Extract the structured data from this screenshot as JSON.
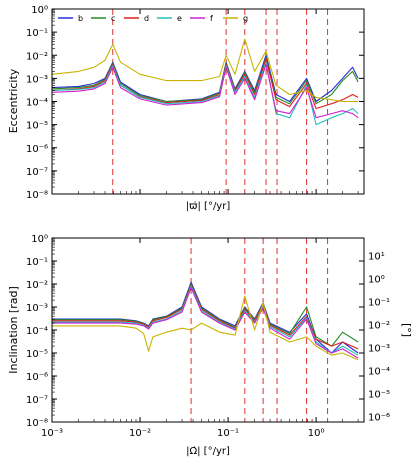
{
  "chart_data": [
    {
      "type": "line",
      "ylabel": "Eccentricity",
      "xlabel": "|ϖ̇|  [°/yr]",
      "xscale": "log",
      "yscale": "log",
      "xlim": [
        0.001,
        3.5
      ],
      "ylim": [
        1e-08,
        1
      ],
      "x_ticks": [],
      "y_tick_exponents": [
        0,
        -1,
        -2,
        -3,
        -4,
        -5,
        -6,
        -7,
        -8
      ],
      "y_tick_labels": [
        "10⁰",
        "10⁻¹",
        "10⁻²",
        "10⁻³",
        "10⁻⁴",
        "10⁻⁵",
        "10⁻⁶",
        "10⁻⁷",
        "10⁻⁸"
      ],
      "vlines": [
        0.0049,
        0.095,
        0.155,
        0.27,
        0.36,
        0.78,
        1.35
      ],
      "legend": {
        "placement": "top-left",
        "entries": [
          "b",
          "c",
          "d",
          "e",
          "f",
          "g"
        ]
      },
      "series": [
        {
          "name": "b",
          "color": "#2b2bd6",
          "x": [
            0.001,
            0.002,
            0.003,
            0.004,
            0.0049,
            0.006,
            0.01,
            0.02,
            0.05,
            0.08,
            0.095,
            0.12,
            0.155,
            0.2,
            0.27,
            0.35,
            0.5,
            0.78,
            1.0,
            1.5,
            2.0,
            2.6,
            3.0
          ],
          "y": [
            0.0004,
            0.00045,
            0.0006,
            0.001,
            0.005,
            0.0007,
            0.0002,
            0.0001,
            0.00013,
            0.00025,
            0.005,
            0.00035,
            0.002,
            0.0003,
            0.01,
            0.0002,
            0.0001,
            0.001,
            0.0001,
            0.0003,
            0.001,
            0.003,
            0.001
          ]
        },
        {
          "name": "c",
          "color": "#228b22",
          "x": [
            0.001,
            0.002,
            0.003,
            0.004,
            0.0049,
            0.006,
            0.01,
            0.02,
            0.05,
            0.08,
            0.095,
            0.12,
            0.155,
            0.2,
            0.27,
            0.35,
            0.5,
            0.78,
            1.0,
            1.5,
            2.0,
            2.6,
            3.0
          ],
          "y": [
            0.00035,
            0.0004,
            0.0005,
            0.0009,
            0.0045,
            0.0006,
            0.00018,
            0.0001,
            0.00012,
            0.00023,
            0.0045,
            0.0003,
            0.0018,
            0.00025,
            0.008,
            0.00015,
            8e-05,
            0.0008,
            8e-05,
            0.0002,
            0.0008,
            0.002,
            0.0007
          ]
        },
        {
          "name": "d",
          "color": "#e02020",
          "x": [
            0.001,
            0.002,
            0.003,
            0.004,
            0.0049,
            0.006,
            0.01,
            0.02,
            0.05,
            0.08,
            0.095,
            0.12,
            0.155,
            0.2,
            0.27,
            0.35,
            0.5,
            0.78,
            1.0,
            1.5,
            2.0,
            2.6,
            3.0
          ],
          "y": [
            0.0003,
            0.00035,
            0.00045,
            0.0008,
            0.004,
            0.0005,
            0.00016,
            9e-05,
            0.00011,
            0.0002,
            0.004,
            0.00028,
            0.0015,
            0.0002,
            0.007,
            0.00012,
            6e-05,
            0.0006,
            5e-05,
            8e-05,
            0.00012,
            0.0002,
            0.00015
          ]
        },
        {
          "name": "e",
          "color": "#20c0c0",
          "x": [
            0.001,
            0.002,
            0.003,
            0.004,
            0.0049,
            0.006,
            0.01,
            0.02,
            0.05,
            0.08,
            0.095,
            0.12,
            0.155,
            0.2,
            0.27,
            0.35,
            0.5,
            0.78,
            1.0,
            1.5,
            2.0,
            2.6,
            3.0
          ],
          "y": [
            0.0003,
            0.00033,
            0.0004,
            0.0007,
            0.0035,
            0.0005,
            0.00015,
            8e-05,
            0.0001,
            0.00018,
            0.0035,
            0.00025,
            0.0012,
            0.00015,
            0.005,
            3e-05,
            2e-05,
            0.0005,
            1e-05,
            2e-05,
            3e-05,
            5e-05,
            3e-05
          ]
        },
        {
          "name": "f",
          "color": "#d020d0",
          "x": [
            0.001,
            0.002,
            0.003,
            0.004,
            0.0049,
            0.006,
            0.01,
            0.02,
            0.05,
            0.08,
            0.095,
            0.12,
            0.155,
            0.2,
            0.27,
            0.35,
            0.5,
            0.78,
            1.0,
            1.5,
            2.0,
            2.6,
            3.0
          ],
          "y": [
            0.00025,
            0.00028,
            0.00035,
            0.0006,
            0.003,
            0.0004,
            0.00013,
            7e-05,
            9e-05,
            0.00016,
            0.003,
            0.0002,
            0.001,
            0.00012,
            0.004,
            4e-05,
            3e-05,
            0.0004,
            2e-05,
            3e-05,
            4e-05,
            3e-05,
            2e-05
          ]
        },
        {
          "name": "g",
          "color": "#c8b400",
          "x": [
            0.001,
            0.002,
            0.003,
            0.004,
            0.0049,
            0.006,
            0.01,
            0.02,
            0.05,
            0.08,
            0.095,
            0.12,
            0.155,
            0.2,
            0.27,
            0.35,
            0.5,
            0.78,
            1.0,
            1.5,
            2.0,
            2.6,
            3.0
          ],
          "y": [
            0.0015,
            0.002,
            0.003,
            0.006,
            0.03,
            0.005,
            0.0015,
            0.0008,
            0.0008,
            0.0012,
            0.01,
            0.0015,
            0.05,
            0.002,
            0.015,
            0.0005,
            0.0002,
            0.0003,
            0.00015,
            0.00012,
            0.0001,
            0.0001,
            0.0001
          ]
        }
      ]
    },
    {
      "type": "line",
      "ylabel": "Inclination [rad]",
      "y2label": "[°]",
      "xlabel": "|Ω̇|  [°/yr]",
      "xscale": "log",
      "yscale": "log",
      "xlim": [
        0.001,
        3.5
      ],
      "ylim": [
        1e-08,
        1
      ],
      "x_tick_labels": [
        "10⁻³",
        "10⁻²",
        "10⁻¹",
        "10⁰"
      ],
      "x_tick_values": [
        0.001,
        0.01,
        0.1,
        1
      ],
      "y_tick_exponents": [
        0,
        -1,
        -2,
        -3,
        -4,
        -5,
        -6,
        -7,
        -8
      ],
      "y_tick_labels": [
        "10⁰",
        "10⁻¹",
        "10⁻²",
        "10⁻³",
        "10⁻⁴",
        "10⁻⁵",
        "10⁻⁶",
        "10⁻⁷",
        "10⁻⁸"
      ],
      "y2_tick_exponents": [
        1,
        0,
        -1,
        -2,
        -3,
        -4,
        -5,
        -6
      ],
      "y2_tick_labels": [
        "10¹",
        "10⁰",
        "10⁻¹",
        "10⁻²",
        "10⁻³",
        "10⁻⁴",
        "10⁻⁵",
        "10⁻⁶"
      ],
      "vlines": [
        0.038,
        0.155,
        0.25,
        0.36,
        0.78,
        1.35
      ],
      "series": [
        {
          "name": "b",
          "color": "#2b2bd6",
          "x": [
            0.001,
            0.003,
            0.006,
            0.009,
            0.011,
            0.0125,
            0.014,
            0.02,
            0.03,
            0.038,
            0.05,
            0.08,
            0.12,
            0.155,
            0.2,
            0.25,
            0.3,
            0.5,
            0.78,
            1.0,
            1.5,
            2.0,
            3.0
          ],
          "y": [
            0.0003,
            0.0003,
            0.0003,
            0.00025,
            0.0002,
            0.00015,
            0.0003,
            0.0004,
            0.001,
            0.012,
            0.001,
            0.0003,
            0.00015,
            0.001,
            0.0003,
            0.0015,
            0.0002,
            8e-05,
            0.0005,
            4e-05,
            1e-05,
            3e-05,
            1e-05
          ]
        },
        {
          "name": "c",
          "color": "#228b22",
          "x": [
            0.001,
            0.003,
            0.006,
            0.009,
            0.011,
            0.0125,
            0.014,
            0.02,
            0.03,
            0.038,
            0.05,
            0.08,
            0.12,
            0.155,
            0.2,
            0.25,
            0.3,
            0.5,
            0.78,
            1.0,
            1.5,
            2.0,
            3.0
          ],
          "y": [
            0.00028,
            0.00028,
            0.00028,
            0.00024,
            0.00019,
            0.00014,
            0.00028,
            0.00038,
            0.0009,
            0.01,
            0.0009,
            0.00028,
            0.00013,
            0.0009,
            0.00028,
            0.0013,
            0.00018,
            7e-05,
            0.001,
            5e-05,
            2e-05,
            8e-05,
            3e-05
          ]
        },
        {
          "name": "d",
          "color": "#e02020",
          "x": [
            0.001,
            0.003,
            0.006,
            0.009,
            0.011,
            0.0125,
            0.014,
            0.02,
            0.03,
            0.038,
            0.05,
            0.08,
            0.12,
            0.155,
            0.2,
            0.25,
            0.3,
            0.5,
            0.78,
            1.0,
            1.5,
            2.0,
            3.0
          ],
          "y": [
            0.00025,
            0.00025,
            0.00025,
            0.00022,
            0.00018,
            0.00013,
            0.00025,
            0.00035,
            0.0008,
            0.009,
            0.0008,
            0.00025,
            0.00012,
            0.0008,
            0.00025,
            0.0012,
            0.00016,
            6e-05,
            0.0004,
            4e-05,
            2e-05,
            3e-05,
            1.5e-05
          ]
        },
        {
          "name": "e",
          "color": "#20c0c0",
          "x": [
            0.001,
            0.003,
            0.006,
            0.009,
            0.011,
            0.0125,
            0.014,
            0.02,
            0.03,
            0.038,
            0.05,
            0.08,
            0.12,
            0.155,
            0.2,
            0.25,
            0.3,
            0.5,
            0.78,
            1.0,
            1.5,
            2.0,
            3.0
          ],
          "y": [
            0.00022,
            0.00022,
            0.00022,
            0.0002,
            0.00016,
            0.00012,
            0.00022,
            0.0003,
            0.0007,
            0.008,
            0.0007,
            0.00022,
            0.00011,
            0.0007,
            0.00022,
            0.001,
            0.00014,
            5e-05,
            0.00035,
            3e-05,
            1e-05,
            2e-05,
            8e-06
          ]
        },
        {
          "name": "f",
          "color": "#d020d0",
          "x": [
            0.001,
            0.003,
            0.006,
            0.009,
            0.011,
            0.0125,
            0.014,
            0.02,
            0.03,
            0.038,
            0.05,
            0.08,
            0.12,
            0.155,
            0.2,
            0.25,
            0.3,
            0.5,
            0.78,
            1.0,
            1.5,
            2.0,
            3.0
          ],
          "y": [
            0.0002,
            0.0002,
            0.0002,
            0.00018,
            0.00015,
            0.00011,
            0.0002,
            0.00028,
            0.0006,
            0.007,
            0.0006,
            0.0002,
            0.0001,
            0.0006,
            0.0002,
            0.0009,
            0.00012,
            4e-05,
            0.0003,
            2.5e-05,
            1e-05,
            1.5e-05,
            6e-06
          ]
        },
        {
          "name": "g",
          "color": "#c8b400",
          "x": [
            0.001,
            0.003,
            0.006,
            0.009,
            0.011,
            0.0125,
            0.014,
            0.02,
            0.03,
            0.038,
            0.05,
            0.08,
            0.12,
            0.155,
            0.2,
            0.25,
            0.3,
            0.5,
            0.78,
            1.0,
            1.5,
            2.0,
            3.0
          ],
          "y": [
            0.00015,
            0.00015,
            0.00015,
            0.00012,
            7e-05,
            1.2e-05,
            5e-05,
            8e-05,
            0.00012,
            0.0001,
            0.0002,
            8e-05,
            6e-05,
            0.003,
            0.0001,
            0.0015,
            8e-05,
            3e-05,
            5e-05,
            2e-05,
            8e-06,
            1e-05,
            5e-06
          ]
        }
      ]
    }
  ]
}
